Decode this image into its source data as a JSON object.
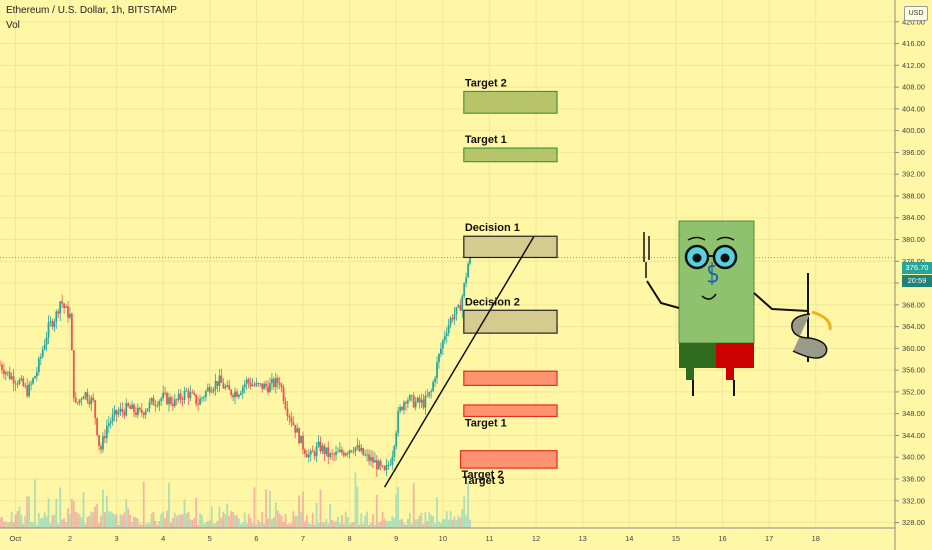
{
  "header": {
    "title": "Ethereum / U.S. Dollar, 1h, BITSTAMP",
    "volume_label": "Vol"
  },
  "currency_badge": "USD",
  "price_tag": {
    "last": "376.70",
    "countdown": "20:59"
  },
  "colors": {
    "background": "#fff7a6",
    "up": "#26a69a",
    "down": "#ef5350",
    "target_fill": "#b8c46a",
    "target_border": "#3d9a3d",
    "decision_fill": "#d6cb8e",
    "stop_fill": "#ff9270",
    "stop_border": "#e03020"
  },
  "chart_data": {
    "type": "candlestick",
    "title": "Ethereum / U.S. Dollar, 1h, BITSTAMP",
    "y_axis": {
      "range": [
        327,
        424
      ],
      "ticks": [
        328,
        332,
        336,
        340,
        344,
        348,
        352,
        356,
        360,
        364,
        368,
        372,
        376,
        380,
        384,
        388,
        392,
        396,
        400,
        404,
        408,
        412,
        416,
        420
      ]
    },
    "x_axis": {
      "range": [
        0,
        19.2
      ],
      "tick_labels": [
        {
          "label": "Oct",
          "pos": 0.33
        },
        {
          "label": "2",
          "pos": 1.5
        },
        {
          "label": "3",
          "pos": 2.5
        },
        {
          "label": "4",
          "pos": 3.5
        },
        {
          "label": "5",
          "pos": 4.5
        },
        {
          "label": "6",
          "pos": 5.5
        },
        {
          "label": "7",
          "pos": 6.5
        },
        {
          "label": "8",
          "pos": 7.5
        },
        {
          "label": "9",
          "pos": 8.5
        },
        {
          "label": "10",
          "pos": 9.5
        },
        {
          "label": "11",
          "pos": 10.5
        },
        {
          "label": "12",
          "pos": 11.5
        },
        {
          "label": "13",
          "pos": 12.5
        },
        {
          "label": "14",
          "pos": 13.5
        },
        {
          "label": "15",
          "pos": 14.5
        },
        {
          "label": "16",
          "pos": 15.5
        },
        {
          "label": "17",
          "pos": 16.5
        },
        {
          "label": "18",
          "pos": 17.5
        }
      ]
    },
    "price_path": [
      [
        0.0,
        357
      ],
      [
        0.2,
        355
      ],
      [
        0.4,
        354
      ],
      [
        0.6,
        352
      ],
      [
        0.8,
        356
      ],
      [
        0.95,
        361
      ],
      [
        1.05,
        364
      ],
      [
        1.2,
        366
      ],
      [
        1.3,
        369
      ],
      [
        1.4,
        367
      ],
      [
        1.5,
        366
      ],
      [
        1.6,
        349
      ],
      [
        1.8,
        352
      ],
      [
        2.0,
        350
      ],
      [
        2.15,
        341
      ],
      [
        2.3,
        346
      ],
      [
        2.5,
        348
      ],
      [
        2.75,
        349
      ],
      [
        3.0,
        348
      ],
      [
        3.25,
        350
      ],
      [
        3.5,
        351
      ],
      [
        3.75,
        350
      ],
      [
        4.0,
        352
      ],
      [
        4.25,
        350
      ],
      [
        4.5,
        353
      ],
      [
        4.7,
        354
      ],
      [
        4.9,
        352
      ],
      [
        5.1,
        352
      ],
      [
        5.3,
        354
      ],
      [
        5.5,
        353
      ],
      [
        5.75,
        353
      ],
      [
        6.0,
        354
      ],
      [
        6.15,
        349
      ],
      [
        6.3,
        346
      ],
      [
        6.5,
        342
      ],
      [
        6.65,
        340
      ],
      [
        6.85,
        342
      ],
      [
        7.1,
        340
      ],
      [
        7.35,
        341
      ],
      [
        7.6,
        342
      ],
      [
        7.85,
        340
      ],
      [
        8.05,
        339
      ],
      [
        8.25,
        337
      ],
      [
        8.4,
        340
      ],
      [
        8.55,
        348
      ],
      [
        8.7,
        351
      ],
      [
        8.9,
        350
      ],
      [
        9.1,
        350
      ],
      [
        9.25,
        352
      ],
      [
        9.4,
        358
      ],
      [
        9.55,
        363
      ],
      [
        9.7,
        366
      ],
      [
        9.85,
        367
      ],
      [
        9.95,
        371
      ],
      [
        10.05,
        376
      ],
      [
        10.12,
        377
      ]
    ],
    "zones": [
      {
        "label": "Target 2",
        "kind": "target",
        "low": 403.2,
        "high": 407.2,
        "x_start": 9.95,
        "x_end": 11.95
      },
      {
        "label": "Target 1",
        "kind": "target",
        "low": 394.3,
        "high": 396.8,
        "x_start": 9.95,
        "x_end": 11.95
      },
      {
        "label": "Decision 1",
        "kind": "decision",
        "low": 376.7,
        "high": 380.6,
        "x_start": 9.95,
        "x_end": 11.95
      },
      {
        "label": "Decision 2",
        "kind": "decision",
        "low": 362.8,
        "high": 367.0,
        "x_start": 9.95,
        "x_end": 11.95
      },
      {
        "label": "",
        "kind": "stop",
        "low": 353.2,
        "high": 355.8,
        "x_start": 9.95,
        "x_end": 11.95
      },
      {
        "label": "Target 1",
        "kind": "stop",
        "low": 347.5,
        "high": 349.6,
        "x_start": 9.95,
        "x_end": 11.95
      },
      {
        "label": "Target 2",
        "kind": "stop",
        "low": 338.0,
        "high": 341.2,
        "x_start": 9.88,
        "x_end": 11.95
      }
    ],
    "standalone_label": "Target 3",
    "trendline": {
      "from": [
        8.25,
        334.5
      ],
      "to": [
        11.45,
        380.5
      ]
    },
    "last_price": 376.7
  }
}
